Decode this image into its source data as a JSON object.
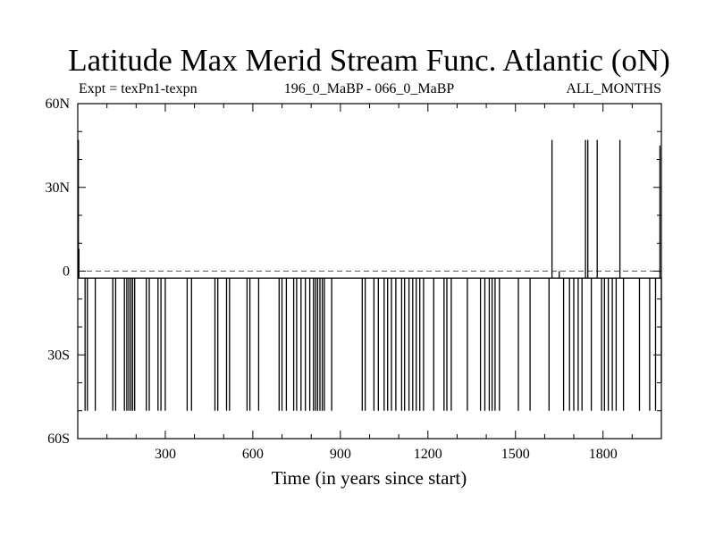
{
  "chart_data": {
    "type": "line",
    "title": "Latitude Max Merid Stream Func. Atlantic (oN)",
    "subtitle_left": "Expt = texPn1-texpn",
    "subtitle_center": "196_0_MaBP - 066_0_MaBP",
    "subtitle_right": "ALL_MONTHS",
    "xlabel": "Time (in years since start)",
    "ylabel": "",
    "xlim": [
      0,
      2000
    ],
    "ylim": [
      -60,
      60
    ],
    "xticks": [
      300,
      600,
      900,
      1200,
      1500,
      1800
    ],
    "xtick_labels": [
      "300",
      "600",
      "900",
      "1200",
      "1500",
      "1800"
    ],
    "yticks": [
      60,
      30,
      0,
      -30,
      -60
    ],
    "ytick_labels": [
      "60N",
      "30N",
      "0",
      "30S",
      "60S"
    ],
    "reference_line": {
      "y": 0,
      "style": "dashed"
    },
    "baseline": -2.5,
    "series": [
      {
        "color": "#000000",
        "events": [
          [
            2,
            47
          ],
          [
            4,
            8
          ],
          [
            25,
            -50
          ],
          [
            33,
            -50
          ],
          [
            60,
            -50
          ],
          [
            120,
            -50
          ],
          [
            130,
            -50
          ],
          [
            160,
            -50
          ],
          [
            168,
            -50
          ],
          [
            175,
            -50
          ],
          [
            182,
            -50
          ],
          [
            188,
            -50
          ],
          [
            195,
            -50
          ],
          [
            235,
            -50
          ],
          [
            245,
            -50
          ],
          [
            275,
            -50
          ],
          [
            285,
            -50
          ],
          [
            300,
            -50
          ],
          [
            375,
            -50
          ],
          [
            390,
            -50
          ],
          [
            470,
            -50
          ],
          [
            480,
            -50
          ],
          [
            510,
            -50
          ],
          [
            520,
            -50
          ],
          [
            580,
            -50
          ],
          [
            590,
            -50
          ],
          [
            620,
            -50
          ],
          [
            690,
            -50
          ],
          [
            700,
            -50
          ],
          [
            715,
            -50
          ],
          [
            740,
            -50
          ],
          [
            750,
            -50
          ],
          [
            765,
            -50
          ],
          [
            780,
            -50
          ],
          [
            795,
            -50
          ],
          [
            808,
            -50
          ],
          [
            815,
            -50
          ],
          [
            822,
            -50
          ],
          [
            830,
            -50
          ],
          [
            838,
            -50
          ],
          [
            845,
            -50
          ],
          [
            870,
            -50
          ],
          [
            975,
            -50
          ],
          [
            985,
            -50
          ],
          [
            1015,
            -50
          ],
          [
            1030,
            -50
          ],
          [
            1050,
            -50
          ],
          [
            1062,
            -50
          ],
          [
            1075,
            -50
          ],
          [
            1090,
            -50
          ],
          [
            1110,
            -50
          ],
          [
            1120,
            -50
          ],
          [
            1135,
            -50
          ],
          [
            1148,
            -50
          ],
          [
            1160,
            -50
          ],
          [
            1172,
            -50
          ],
          [
            1185,
            -50
          ],
          [
            1220,
            -50
          ],
          [
            1255,
            -50
          ],
          [
            1265,
            -50
          ],
          [
            1280,
            -50
          ],
          [
            1335,
            -50
          ],
          [
            1380,
            -50
          ],
          [
            1395,
            -50
          ],
          [
            1410,
            -50
          ],
          [
            1420,
            -50
          ],
          [
            1430,
            -50
          ],
          [
            1445,
            -50
          ],
          [
            1510,
            -50
          ],
          [
            1550,
            -50
          ],
          [
            1615,
            -50
          ],
          [
            1625,
            47
          ],
          [
            1650,
            0
          ],
          [
            1665,
            -50
          ],
          [
            1685,
            -50
          ],
          [
            1700,
            -50
          ],
          [
            1715,
            -50
          ],
          [
            1728,
            -50
          ],
          [
            1740,
            47
          ],
          [
            1748,
            47
          ],
          [
            1760,
            -50
          ],
          [
            1780,
            47
          ],
          [
            1795,
            -50
          ],
          [
            1805,
            -50
          ],
          [
            1818,
            -50
          ],
          [
            1832,
            -50
          ],
          [
            1845,
            -50
          ],
          [
            1858,
            47
          ],
          [
            1870,
            -50
          ],
          [
            1925,
            -50
          ],
          [
            1960,
            -50
          ],
          [
            1980,
            -50
          ],
          [
            1995,
            45
          ],
          [
            2000,
            -40
          ]
        ]
      }
    ]
  }
}
